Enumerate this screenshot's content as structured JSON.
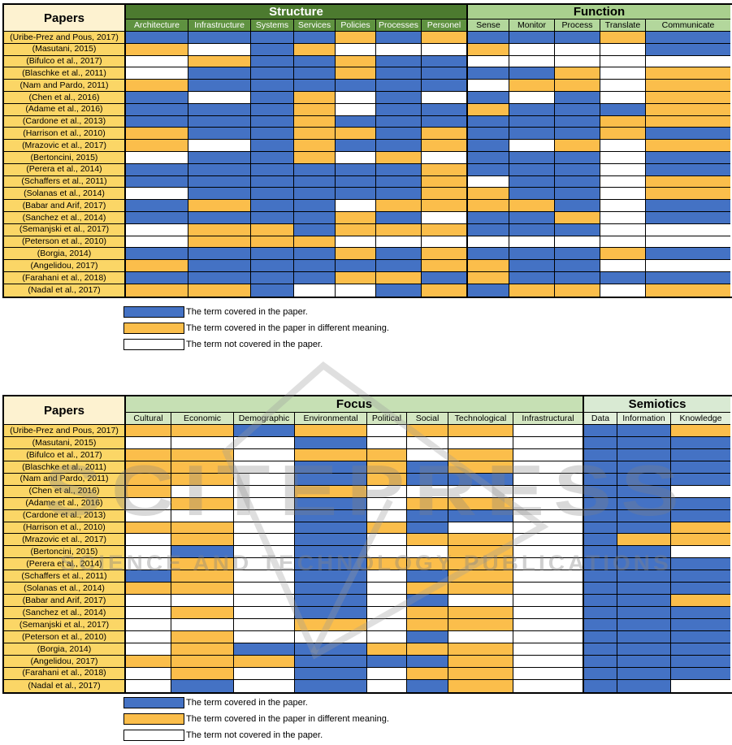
{
  "colors": {
    "covered": "#4472C4",
    "covered_different": "#FBBE4B",
    "not_covered": "#FFFFFF",
    "paper_cell_bg": "#FBD666",
    "paper_header_bg": "#FDF2D0",
    "structure_group_bg": "#4C7A2F",
    "structure_col_bg": "#5F9240",
    "function_group_bg": "#A9D08E",
    "function_col_bg": "#B3D79C",
    "focus_group_bg": "#C6E0B4",
    "focus_col_bg": "#D4E7C2",
    "semiotics_group_bg": "#D9EAD3",
    "semiotics_col_bg": "#E2EFDA",
    "border": "#000000"
  },
  "cell_code_legend": {
    "C": "covered",
    "D": "covered_different",
    "N": "not_covered"
  },
  "table1": {
    "papers_header": "Papers",
    "groups": [
      {
        "label": "Structure",
        "columns": [
          "Architecture",
          "Infrastructure",
          "Systems",
          "Services",
          "Policies",
          "Processes",
          "Personel"
        ]
      },
      {
        "label": "Function",
        "columns": [
          "Sense",
          "Monitor",
          "Process",
          "Translate",
          "Communicate"
        ]
      }
    ],
    "rows": [
      {
        "paper": "(Uribe-Prez and Pous, 2017)",
        "cells": "CCCCDCDCCCDC"
      },
      {
        "paper": "(Masutani, 2015)",
        "cells": "DNCDNNNDNNNC"
      },
      {
        "paper": "(Bifulco et al., 2017)",
        "cells": "NDCCDCCNNNNN"
      },
      {
        "paper": "(Blaschke et al., 2011)",
        "cells": "NCCCDCCCCDND"
      },
      {
        "paper": "(Nam and Pardo, 2011)",
        "cells": "DCCCCCCNDDND"
      },
      {
        "paper": "(Chen et al., 2016)",
        "cells": "CNCDNCNCNCND"
      },
      {
        "paper": "(Adame et al., 2016)",
        "cells": "CCCDNCCDCCCD"
      },
      {
        "paper": "(Cardone et al., 2013)",
        "cells": "CCCDCCCCCCDD"
      },
      {
        "paper": "(Harrison et al., 2010)",
        "cells": "DCCDDCDCCCDC"
      },
      {
        "paper": "(Mrazovic et al., 2017)",
        "cells": "DNCDCCDCNDND"
      },
      {
        "paper": "(Bertoncini, 2015)",
        "cells": "NCCDNDNCCCNC"
      },
      {
        "paper": "(Perera et al., 2014)",
        "cells": "CCCCCCDCCCNC"
      },
      {
        "paper": "(Schaffers et al., 2011)",
        "cells": "CCCCCCDNCCND"
      },
      {
        "paper": "(Solanas et al., 2014)",
        "cells": "NCCCCCDDCCND"
      },
      {
        "paper": "(Babar and Arif, 2017)",
        "cells": "CDCCNDDDDCNC"
      },
      {
        "paper": "(Sanchez et al., 2014)",
        "cells": "CCCCDCNCCDNC"
      },
      {
        "paper": "(Semanjski et al., 2017)",
        "cells": "NDDCDDDCCCNN"
      },
      {
        "paper": "(Peterson et al., 2010)",
        "cells": "NDDDNNNNNNNN"
      },
      {
        "paper": "(Borgia, 2014)",
        "cells": "CCCCDCDCCCDC"
      },
      {
        "paper": "(Angelidou, 2017)",
        "cells": "DCCCCCDDCCNN"
      },
      {
        "paper": "(Farahani et al., 2018)",
        "cells": "CCCCDDCDCCCC"
      },
      {
        "paper": "(Nadal et al., 2017)",
        "cells": "DDCNNCDCDDND"
      }
    ]
  },
  "table2": {
    "papers_header": "Papers",
    "groups": [
      {
        "label": "Focus",
        "columns": [
          "Cultural",
          "Economic",
          "Demographic",
          "Environmental",
          "Political",
          "Social",
          "Technological",
          "Infrastructural"
        ]
      },
      {
        "label": "Semiotics",
        "columns": [
          "Data",
          "Information",
          "Knowledge"
        ]
      }
    ],
    "rows": [
      {
        "paper": "(Uribe-Prez and Pous, 2017)",
        "cells": "DDCDNDDNCCD"
      },
      {
        "paper": "(Masutani, 2015)",
        "cells": "NNNCNNNNCCC"
      },
      {
        "paper": "(Bifulco et al., 2017)",
        "cells": "DDNDDNDNCCC"
      },
      {
        "paper": "(Blaschke et al., 2011)",
        "cells": "DDNCDCDNCCC"
      },
      {
        "paper": "(Nam and Pardo, 2011)",
        "cells": "DDNCDCCNCCC"
      },
      {
        "paper": "(Chen et al., 2016)",
        "cells": "DNNDNNNNCCN"
      },
      {
        "paper": "(Adame et al., 2016)",
        "cells": "NDNCNDDNCCC"
      },
      {
        "paper": "(Cardone et al., 2013)",
        "cells": "NNNCNCCNCCC"
      },
      {
        "paper": "(Harrison et al., 2010)",
        "cells": "DDNCDCNNCCD"
      },
      {
        "paper": "(Mrazovic et al., 2017)",
        "cells": "NDNCNDDNCDD"
      },
      {
        "paper": "(Bertoncini, 2015)",
        "cells": "NCNCNNDNCCN"
      },
      {
        "paper": "(Perera et al., 2014)",
        "cells": "NDNCDDDNCCC"
      },
      {
        "paper": "(Schaffers et al., 2011)",
        "cells": "CDNCNCDNCCC"
      },
      {
        "paper": "(Solanas et al., 2014)",
        "cells": "DDNCNDDNCCC"
      },
      {
        "paper": "(Babar and Arif, 2017)",
        "cells": "NNNCNCNNCCD"
      },
      {
        "paper": "(Sanchez et al., 2014)",
        "cells": "NDNCNDDNCCC"
      },
      {
        "paper": "(Semanjski et al., 2017)",
        "cells": "NNNDNDDNCCC"
      },
      {
        "paper": "(Peterson et al., 2010)",
        "cells": "NDNNNCNNCCC"
      },
      {
        "paper": "(Borgia, 2014)",
        "cells": "NDCCDDDNCCC"
      },
      {
        "paper": "(Angelidou, 2017)",
        "cells": "DDDCCCDNCCC"
      },
      {
        "paper": "(Farahani et al., 2018)",
        "cells": "NDNCNDDNCCC"
      },
      {
        "paper": "(Nadal et al., 2017)",
        "cells": "NCNCNCDNCCN"
      }
    ]
  },
  "legend": {
    "items": [
      {
        "code": "C",
        "label": "The term covered in the paper."
      },
      {
        "code": "D",
        "label": "The term covered in the paper in different meaning."
      },
      {
        "code": "N",
        "label": "The term not covered in the paper."
      }
    ]
  },
  "watermark": {
    "title": "SCITEPRESS",
    "subtitle": "SCIENCE AND TECHNOLOGY PUBLICATIONS"
  }
}
